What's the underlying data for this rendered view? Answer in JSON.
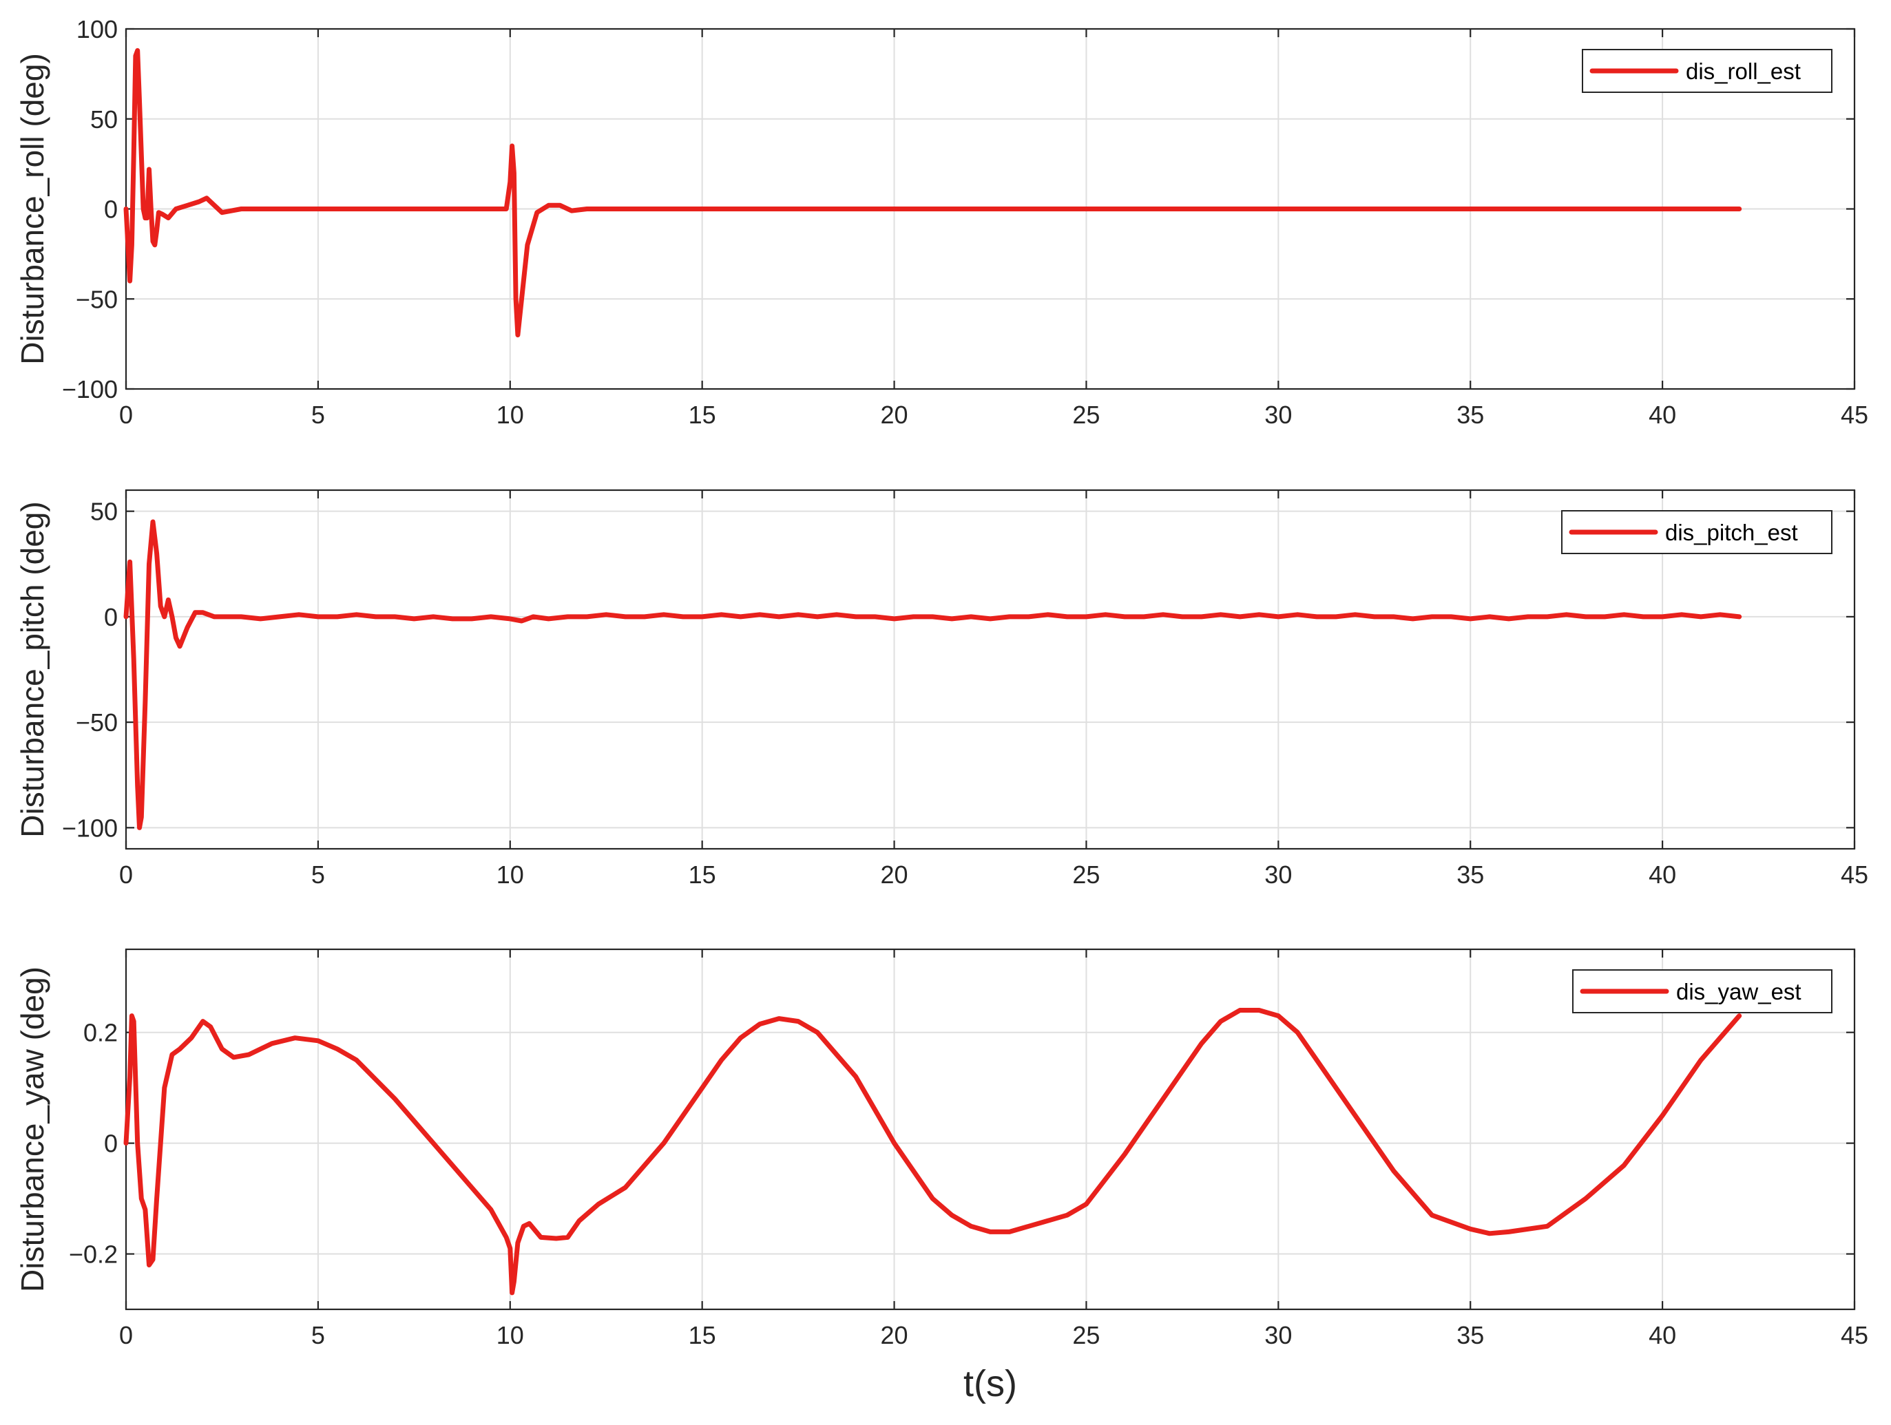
{
  "figure": {
    "xlabel": "t(s)"
  },
  "chart_data": [
    {
      "type": "line",
      "ylabel": "Disturbance_roll (deg)",
      "xlim": [
        0,
        45
      ],
      "ylim": [
        -100,
        100
      ],
      "xticks": [
        0,
        5,
        10,
        15,
        20,
        25,
        30,
        35,
        40,
        45
      ],
      "yticks": [
        -100,
        -50,
        0,
        50,
        100
      ],
      "ytick_labels": [
        "−100",
        "−50",
        "0",
        "50",
        "100"
      ],
      "grid": true,
      "legend_position": "top-right",
      "series": [
        {
          "name": "dis_roll_est",
          "color": "#e8211c",
          "x": [
            0,
            0.1,
            0.15,
            0.2,
            0.25,
            0.3,
            0.35,
            0.45,
            0.5,
            0.55,
            0.6,
            0.65,
            0.7,
            0.75,
            0.8,
            0.85,
            0.95,
            1.1,
            1.3,
            1.6,
            1.9,
            2.1,
            2.3,
            2.5,
            3,
            4,
            6,
            8,
            9.9,
            10,
            10.05,
            10.1,
            10.15,
            10.2,
            10.3,
            10.45,
            10.7,
            11,
            11.3,
            11.6,
            12,
            13,
            15,
            20,
            25,
            30,
            35,
            40,
            42
          ],
          "values": [
            0,
            -40,
            -20,
            30,
            85,
            88,
            60,
            0,
            -5,
            -5,
            22,
            0,
            -18,
            -20,
            -12,
            -2,
            -3,
            -5,
            0,
            2,
            4,
            6,
            2,
            -2,
            0,
            0,
            0,
            0,
            0,
            15,
            35,
            20,
            -50,
            -70,
            -50,
            -20,
            -2,
            2,
            2,
            -1,
            0,
            0,
            0,
            0,
            0,
            0,
            0,
            0,
            0
          ]
        }
      ]
    },
    {
      "type": "line",
      "ylabel": "Disturbance_pitch (deg)",
      "xlim": [
        0,
        45
      ],
      "ylim": [
        -110,
        60
      ],
      "xticks": [
        0,
        5,
        10,
        15,
        20,
        25,
        30,
        35,
        40,
        45
      ],
      "yticks": [
        -100,
        -50,
        0,
        50
      ],
      "ytick_labels": [
        "−100",
        "−50",
        "0",
        "50"
      ],
      "grid": true,
      "legend_position": "top-right",
      "series": [
        {
          "name": "dis_pitch_est",
          "color": "#e8211c",
          "x": [
            0,
            0.1,
            0.2,
            0.3,
            0.35,
            0.4,
            0.5,
            0.6,
            0.7,
            0.8,
            0.9,
            1,
            1.1,
            1.2,
            1.3,
            1.4,
            1.6,
            1.8,
            2,
            2.3,
            2.6,
            3,
            3.5,
            4,
            4.5,
            5,
            5.5,
            6,
            6.5,
            7,
            7.5,
            8,
            8.5,
            9,
            9.5,
            10,
            10.3,
            10.6,
            11,
            11.5,
            12,
            12.5,
            13,
            13.5,
            14,
            14.5,
            15,
            15.5,
            16,
            16.5,
            17,
            17.5,
            18,
            18.5,
            19,
            19.5,
            20,
            20.5,
            21,
            21.5,
            22,
            22.5,
            23,
            23.5,
            24,
            24.5,
            25,
            25.5,
            26,
            26.5,
            27,
            27.5,
            28,
            28.5,
            29,
            29.5,
            30,
            30.5,
            31,
            31.5,
            32,
            32.5,
            33,
            33.5,
            34,
            34.5,
            35,
            35.5,
            36,
            36.5,
            37,
            37.5,
            38,
            38.5,
            39,
            39.5,
            40,
            40.5,
            41,
            41.5,
            42
          ],
          "values": [
            0,
            26,
            -20,
            -80,
            -100,
            -95,
            -40,
            25,
            45,
            30,
            5,
            0,
            8,
            0,
            -10,
            -14,
            -5,
            2,
            2,
            0,
            0,
            0,
            -1,
            0,
            1,
            0,
            0,
            1,
            0,
            0,
            -1,
            0,
            -1,
            -1,
            0,
            -1,
            -2,
            0,
            -1,
            0,
            0,
            1,
            0,
            0,
            1,
            0,
            0,
            1,
            0,
            1,
            0,
            1,
            0,
            1,
            0,
            0,
            -1,
            0,
            0,
            -1,
            0,
            -1,
            0,
            0,
            1,
            0,
            0,
            1,
            0,
            0,
            1,
            0,
            0,
            1,
            0,
            1,
            0,
            1,
            0,
            0,
            1,
            0,
            0,
            -1,
            0,
            0,
            -1,
            0,
            -1,
            0,
            0,
            1,
            0,
            0,
            1,
            0,
            0,
            1,
            0,
            1,
            0
          ]
        }
      ]
    },
    {
      "type": "line",
      "ylabel": "Disturbance_yaw (deg)",
      "xlim": [
        0,
        45
      ],
      "ylim": [
        -0.3,
        0.35
      ],
      "xticks": [
        0,
        5,
        10,
        15,
        20,
        25,
        30,
        35,
        40,
        45
      ],
      "yticks": [
        -0.2,
        0,
        0.2
      ],
      "ytick_labels": [
        "−0.2",
        "0",
        "0.2"
      ],
      "grid": true,
      "legend_position": "top-right",
      "series": [
        {
          "name": "dis_yaw_est",
          "color": "#e8211c",
          "x": [
            0,
            0.1,
            0.15,
            0.2,
            0.3,
            0.4,
            0.5,
            0.6,
            0.7,
            0.8,
            1,
            1.2,
            1.4,
            1.7,
            2,
            2.2,
            2.5,
            2.8,
            3.2,
            3.8,
            4.4,
            5,
            5.5,
            6,
            7,
            8,
            9,
            9.5,
            9.9,
            10,
            10.05,
            10.1,
            10.2,
            10.35,
            10.5,
            10.8,
            11.2,
            11.5,
            11.8,
            12.3,
            13,
            14,
            15,
            15.5,
            16,
            16.5,
            17,
            17.5,
            18,
            18.5,
            19,
            20,
            21,
            21.5,
            22,
            22.5,
            23,
            23.5,
            24,
            24.5,
            25,
            26,
            27,
            28,
            28.5,
            29,
            29.5,
            30,
            30.5,
            31,
            32,
            33,
            34,
            35,
            35.5,
            36,
            37,
            38,
            39,
            40,
            41,
            41.5,
            42
          ],
          "values": [
            0,
            0.12,
            0.23,
            0.22,
            0,
            -0.1,
            -0.12,
            -0.22,
            -0.21,
            -0.1,
            0.1,
            0.16,
            0.17,
            0.19,
            0.22,
            0.21,
            0.17,
            0.155,
            0.16,
            0.18,
            0.19,
            0.185,
            0.17,
            0.15,
            0.08,
            0,
            -0.08,
            -0.12,
            -0.17,
            -0.19,
            -0.27,
            -0.25,
            -0.18,
            -0.15,
            -0.145,
            -0.17,
            -0.172,
            -0.17,
            -0.14,
            -0.11,
            -0.08,
            0,
            0.1,
            0.15,
            0.19,
            0.215,
            0.225,
            0.22,
            0.2,
            0.16,
            0.12,
            0,
            -0.1,
            -0.13,
            -0.15,
            -0.16,
            -0.16,
            -0.15,
            -0.14,
            -0.13,
            -0.11,
            -0.02,
            0.08,
            0.18,
            0.22,
            0.24,
            0.24,
            0.23,
            0.2,
            0.15,
            0.05,
            -0.05,
            -0.13,
            -0.155,
            -0.163,
            -0.16,
            -0.15,
            -0.1,
            -0.04,
            0.05,
            0.15,
            0.19,
            0.23
          ]
        }
      ]
    }
  ]
}
